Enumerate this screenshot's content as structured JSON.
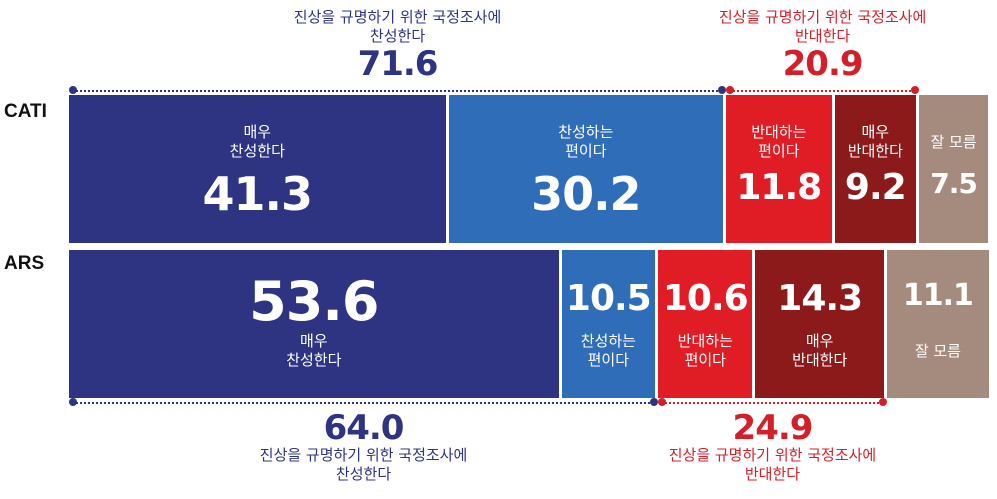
{
  "chart_data": {
    "type": "bar",
    "stacked": true,
    "orientation": "horizontal",
    "categories": [
      "CATI",
      "ARS"
    ],
    "series": [
      {
        "name": "매우\n찬성한다",
        "values": [
          41.3,
          53.6
        ]
      },
      {
        "name": "찬성하는\n편이다",
        "values": [
          30.2,
          10.5
        ]
      },
      {
        "name": "반대하는\n편이다",
        "values": [
          11.8,
          10.6
        ]
      },
      {
        "name": "매우\n반대한다",
        "values": [
          9.2,
          14.3
        ]
      },
      {
        "name": "잘 모름",
        "values": [
          7.5,
          11.1
        ]
      }
    ],
    "groups": [
      {
        "row": "CATI",
        "position": "top",
        "side": "agree",
        "label": "진상을 규명하기 위한 국정조사에\n찬성한다",
        "value": "71.6"
      },
      {
        "row": "CATI",
        "position": "top",
        "side": "disagree",
        "label": "진상을 규명하기 위한 국정조사에\n반대한다",
        "value": "20.9"
      },
      {
        "row": "ARS",
        "position": "bottom",
        "side": "agree",
        "label": "진상을 규명하기 위한 국정조사에\n찬성한다",
        "value": "64.0"
      },
      {
        "row": "ARS",
        "position": "bottom",
        "side": "disagree",
        "label": "진상을 규명하기 위한 국정조사에\n반대한다",
        "value": "24.9"
      }
    ],
    "colors": [
      "#2e3382",
      "#2f6db8",
      "#e01c24",
      "#8c1a1a",
      "#a58a7e"
    ],
    "group_colors": {
      "agree": "#2e3382",
      "disagree": "#d31f28"
    }
  }
}
